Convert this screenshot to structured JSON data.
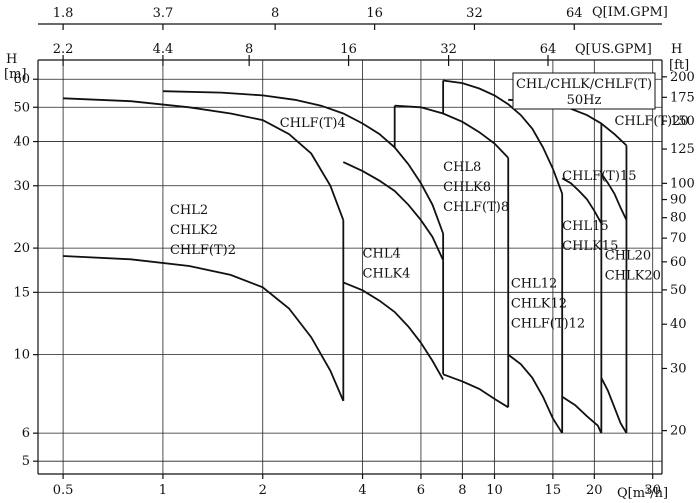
{
  "chart_data": {
    "type": "line",
    "title": "",
    "legend_box": {
      "line1": "CHL/CHLK/CHLF(T)",
      "line2": "50Hz"
    },
    "x_scale": "log",
    "y_scale": "log",
    "xlim": [
      0.42,
      32
    ],
    "ylim": [
      4.6,
      68
    ],
    "axes": {
      "bottom": {
        "label": "Q[m³/h]",
        "ticks": [
          "0.5",
          "1",
          "2",
          "4",
          "6",
          "8",
          "10",
          "15",
          "20",
          "30"
        ],
        "values": [
          0.5,
          1,
          2,
          4,
          6,
          8,
          10,
          15,
          20,
          30
        ]
      },
      "top_im": {
        "label": "Q[IM.GPM]",
        "ticks": [
          "1.8",
          "3.7",
          "8",
          "16",
          "32",
          "64"
        ],
        "values": [
          0.5,
          1,
          2.18,
          4.35,
          8.7,
          17.4
        ]
      },
      "top_us": {
        "label": "Q[US.GPM]",
        "ticks": [
          "2.2",
          "4.4",
          "8",
          "16",
          "32",
          "64"
        ],
        "values": [
          0.5,
          1,
          1.82,
          3.63,
          7.27,
          14.5
        ]
      },
      "left": {
        "label_line1": "H",
        "label_line2": "[m]",
        "ticks": [
          "5",
          "6",
          "10",
          "15",
          "20",
          "30",
          "40",
          "50",
          "60"
        ],
        "values": [
          5,
          6,
          10,
          15,
          20,
          30,
          40,
          50,
          60
        ]
      },
      "right": {
        "label_line1": "H",
        "label_line2": "[ft]",
        "ticks": [
          "20",
          "30",
          "40",
          "50",
          "60",
          "70",
          "80",
          "90",
          "100",
          "125",
          "150",
          "175",
          "200"
        ],
        "values": [
          6.1,
          9.14,
          12.19,
          15.24,
          18.29,
          21.34,
          24.38,
          27.43,
          30.48,
          38.1,
          45.72,
          53.34,
          60.96
        ]
      }
    },
    "series": [
      {
        "x": [
          0.5,
          0.8,
          1.2,
          1.6,
          2.0,
          2.4,
          2.8,
          3.2,
          3.5
        ],
        "y": [
          53,
          52,
          50,
          48,
          46,
          42,
          37,
          30,
          24
        ]
      },
      {
        "x": [
          0.5,
          0.8,
          1.2,
          1.6,
          2.0,
          2.4,
          2.8,
          3.2,
          3.5
        ],
        "y": [
          19,
          18.6,
          17.8,
          16.8,
          15.5,
          13.5,
          11.2,
          9,
          7.4
        ]
      },
      {
        "x": [
          1.0,
          1.5,
          2.0,
          2.5,
          3.0,
          3.5,
          4.0,
          4.5,
          5.0,
          5.5,
          6.0,
          6.5,
          7.0
        ],
        "y": [
          55.5,
          55,
          54,
          52.5,
          50.5,
          48,
          45,
          42,
          38.5,
          34.5,
          30.5,
          26.5,
          22
        ]
      },
      {
        "x": [
          3.5,
          4.0,
          4.5,
          5.0,
          5.5,
          6.0,
          6.5,
          7.0
        ],
        "y": [
          35,
          33,
          31,
          29,
          26.5,
          24,
          21.5,
          18.5
        ]
      },
      {
        "x": [
          3.5,
          4.0,
          4.5,
          5.0,
          5.5,
          6.0,
          6.5,
          7.0
        ],
        "y": [
          16,
          15.2,
          14.2,
          13.2,
          12,
          10.8,
          9.6,
          8.5
        ]
      },
      {
        "x": [
          7.0,
          8.0,
          9.0,
          10.0,
          11.0,
          12.0,
          13.0,
          14.0,
          15.0,
          16.0
        ],
        "y": [
          59.5,
          58.5,
          56.5,
          54,
          51,
          47.5,
          43.5,
          38.5,
          33.5,
          28.5
        ]
      },
      {
        "x": [
          5.0,
          6.0,
          7.0,
          8.0,
          9.0,
          10.0,
          11.0
        ],
        "y": [
          50.5,
          50,
          48,
          45.5,
          42.5,
          39.5,
          36
        ]
      },
      {
        "x": [
          7.0,
          8.0,
          9.0,
          10.0,
          11.0
        ],
        "y": [
          8.8,
          8.4,
          8.0,
          7.5,
          7.1
        ]
      },
      {
        "x": [
          11.0,
          12.0,
          13.0,
          14.0,
          15.0,
          16.0
        ],
        "y": [
          10.0,
          9.4,
          8.6,
          7.6,
          6.6,
          6.0
        ]
      },
      {
        "x": [
          11.0,
          13.0,
          15.0,
          17.0,
          19.0,
          21.0,
          23.0,
          25.0
        ],
        "y": [
          52.5,
          52,
          51,
          49.5,
          47.5,
          45,
          42,
          39
        ]
      },
      {
        "x": [
          16.0,
          17.0,
          18.0,
          19.0,
          20.0,
          21.0
        ],
        "y": [
          31.5,
          30.5,
          29,
          27.5,
          25.5,
          23.5
        ]
      },
      {
        "x": [
          16.0,
          17.5,
          19.0,
          20.5,
          21.0
        ],
        "y": [
          7.6,
          7.2,
          6.7,
          6.3,
          6.0
        ]
      },
      {
        "x": [
          21.0,
          22.0,
          23.0,
          24.0,
          25.0
        ],
        "y": [
          32.5,
          30.5,
          28.5,
          26,
          24
        ]
      },
      {
        "x": [
          21.0,
          22.0,
          23.0,
          24.0,
          25.0
        ],
        "y": [
          8.6,
          7.9,
          7.1,
          6.4,
          6.0
        ]
      }
    ],
    "cutoffs": [
      {
        "x": 3.5,
        "y1": 24,
        "y2": 16
      },
      {
        "x": 3.5,
        "y1": 16,
        "y2": 7.4
      },
      {
        "x": 7.0,
        "y1": 22,
        "y2": 18.5
      },
      {
        "x": 7.0,
        "y1": 18.5,
        "y2": 8.8
      },
      {
        "x": 5.0,
        "y1": 50.5,
        "y2": 38.5
      },
      {
        "x": 7.0,
        "y1": 59.5,
        "y2": 48
      },
      {
        "x": 11.0,
        "y1": 36,
        "y2": 7.1
      },
      {
        "x": 16.0,
        "y1": 28.5,
        "y2": 6.0
      },
      {
        "x": 21.0,
        "y1": 45,
        "y2": 6.0
      },
      {
        "x": 25.0,
        "y1": 39,
        "y2": 6.0
      }
    ],
    "labels": [
      {
        "lines": [
          "CHL2",
          "CHLK2",
          "CHLF(T)2"
        ],
        "x": 1.05,
        "y": 25
      },
      {
        "lines": [
          "CHLF(T)4"
        ],
        "x": 2.25,
        "y": 44
      },
      {
        "lines": [
          "CHL4",
          "CHLK4"
        ],
        "x": 4.0,
        "y": 18.8
      },
      {
        "lines": [
          "CHL8",
          "CHLK8",
          "CHLF(T)8"
        ],
        "x": 7.0,
        "y": 33
      },
      {
        "lines": [
          "CHL12",
          "CHLK12",
          "CHLF(T)12"
        ],
        "x": 11.2,
        "y": 15.5
      },
      {
        "lines": [
          "CHLF(T)15"
        ],
        "x": 16.0,
        "y": 31.2
      },
      {
        "lines": [
          "CHL15",
          "CHLK15"
        ],
        "x": 16.0,
        "y": 22.5
      },
      {
        "lines": [
          "CHLF(T)20"
        ],
        "x": 23.0,
        "y": 44.5
      },
      {
        "lines": [
          "CHL20",
          "CHLK20"
        ],
        "x": 21.5,
        "y": 18.6
      }
    ]
  }
}
